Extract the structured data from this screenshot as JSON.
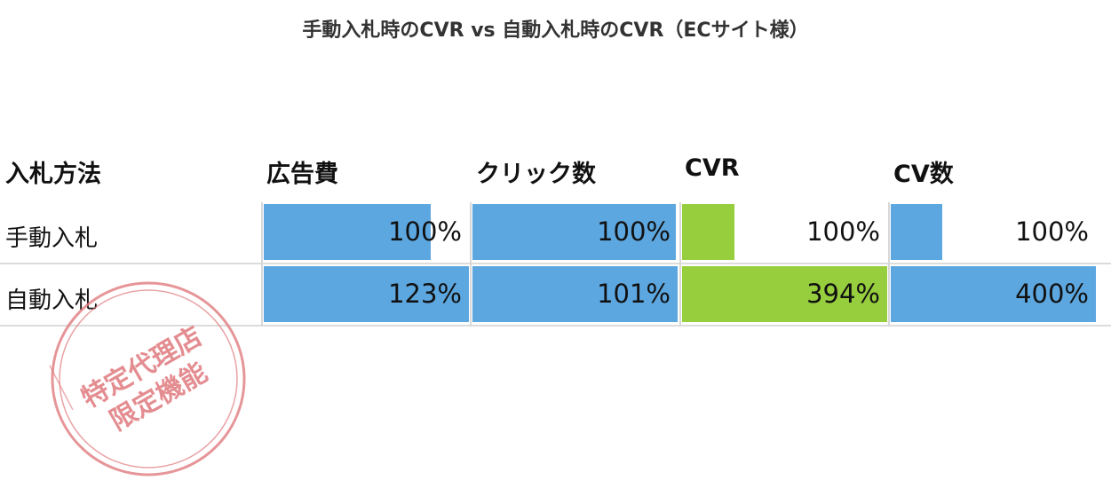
{
  "title": "手動入札時のCVR vs 自動入札時のCVR（ECサイト様）",
  "colors": {
    "blue": "#5DA7E0",
    "green": "#96CE3E",
    "stamp": "#E07A7E"
  },
  "chart_data": {
    "type": "table",
    "title": "手動入札時のCVR vs 自動入札時のCVR（ECサイト様）",
    "header_label": "入札方法",
    "columns": [
      "広告費",
      "クリック数",
      "CVR",
      "CV数"
    ],
    "column_colors": [
      "blue",
      "blue",
      "green",
      "blue"
    ],
    "rows": [
      {
        "label": "手動入札",
        "labels": [
          "100%",
          "100%",
          "100%",
          "100%"
        ],
        "values": [
          100,
          100,
          100,
          100
        ]
      },
      {
        "label": "自動入札",
        "labels": [
          "123%",
          "101%",
          "394%",
          "400%"
        ],
        "values": [
          123,
          101,
          394,
          400
        ]
      }
    ],
    "column_max": [
      123,
      101,
      394,
      400
    ]
  },
  "stamp": {
    "line1": "特定代理店",
    "line2": "限定機能"
  }
}
